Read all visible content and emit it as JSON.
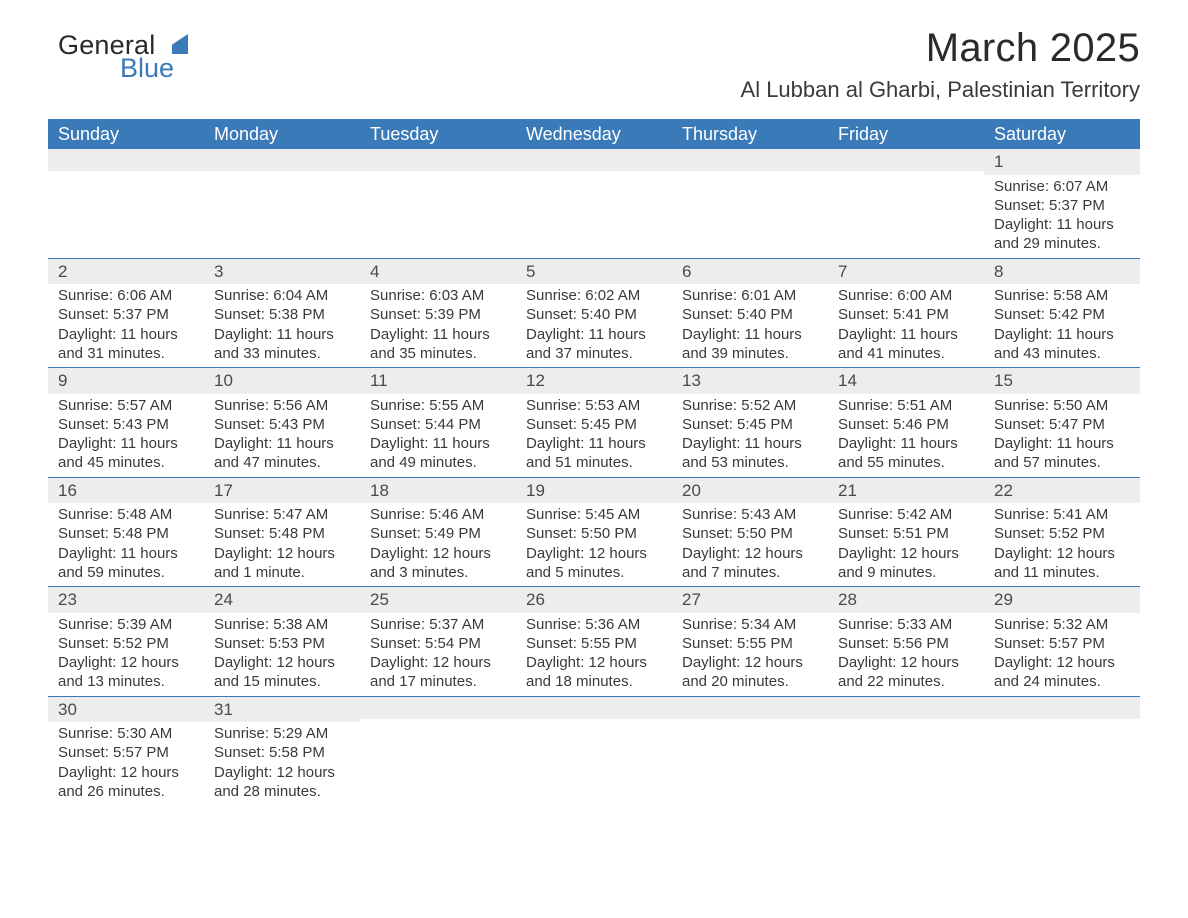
{
  "logo": {
    "text1": "General",
    "text2": "Blue",
    "triangle_color": "#3a7ab8"
  },
  "title": "March 2025",
  "location": "Al Lubban al Gharbi, Palestinian Territory",
  "colors": {
    "header_bg": "#3a7ab8",
    "header_text": "#ffffff",
    "row_border": "#3a7ab8",
    "daynum_bg": "#ededed",
    "text": "#3a3a3a",
    "background": "#ffffff"
  },
  "day_headers": [
    "Sunday",
    "Monday",
    "Tuesday",
    "Wednesday",
    "Thursday",
    "Friday",
    "Saturday"
  ],
  "weeks": [
    [
      {
        "n": "",
        "sunrise": "",
        "sunset": "",
        "daylight1": "",
        "daylight2": ""
      },
      {
        "n": "",
        "sunrise": "",
        "sunset": "",
        "daylight1": "",
        "daylight2": ""
      },
      {
        "n": "",
        "sunrise": "",
        "sunset": "",
        "daylight1": "",
        "daylight2": ""
      },
      {
        "n": "",
        "sunrise": "",
        "sunset": "",
        "daylight1": "",
        "daylight2": ""
      },
      {
        "n": "",
        "sunrise": "",
        "sunset": "",
        "daylight1": "",
        "daylight2": ""
      },
      {
        "n": "",
        "sunrise": "",
        "sunset": "",
        "daylight1": "",
        "daylight2": ""
      },
      {
        "n": "1",
        "sunrise": "Sunrise: 6:07 AM",
        "sunset": "Sunset: 5:37 PM",
        "daylight1": "Daylight: 11 hours",
        "daylight2": "and 29 minutes."
      }
    ],
    [
      {
        "n": "2",
        "sunrise": "Sunrise: 6:06 AM",
        "sunset": "Sunset: 5:37 PM",
        "daylight1": "Daylight: 11 hours",
        "daylight2": "and 31 minutes."
      },
      {
        "n": "3",
        "sunrise": "Sunrise: 6:04 AM",
        "sunset": "Sunset: 5:38 PM",
        "daylight1": "Daylight: 11 hours",
        "daylight2": "and 33 minutes."
      },
      {
        "n": "4",
        "sunrise": "Sunrise: 6:03 AM",
        "sunset": "Sunset: 5:39 PM",
        "daylight1": "Daylight: 11 hours",
        "daylight2": "and 35 minutes."
      },
      {
        "n": "5",
        "sunrise": "Sunrise: 6:02 AM",
        "sunset": "Sunset: 5:40 PM",
        "daylight1": "Daylight: 11 hours",
        "daylight2": "and 37 minutes."
      },
      {
        "n": "6",
        "sunrise": "Sunrise: 6:01 AM",
        "sunset": "Sunset: 5:40 PM",
        "daylight1": "Daylight: 11 hours",
        "daylight2": "and 39 minutes."
      },
      {
        "n": "7",
        "sunrise": "Sunrise: 6:00 AM",
        "sunset": "Sunset: 5:41 PM",
        "daylight1": "Daylight: 11 hours",
        "daylight2": "and 41 minutes."
      },
      {
        "n": "8",
        "sunrise": "Sunrise: 5:58 AM",
        "sunset": "Sunset: 5:42 PM",
        "daylight1": "Daylight: 11 hours",
        "daylight2": "and 43 minutes."
      }
    ],
    [
      {
        "n": "9",
        "sunrise": "Sunrise: 5:57 AM",
        "sunset": "Sunset: 5:43 PM",
        "daylight1": "Daylight: 11 hours",
        "daylight2": "and 45 minutes."
      },
      {
        "n": "10",
        "sunrise": "Sunrise: 5:56 AM",
        "sunset": "Sunset: 5:43 PM",
        "daylight1": "Daylight: 11 hours",
        "daylight2": "and 47 minutes."
      },
      {
        "n": "11",
        "sunrise": "Sunrise: 5:55 AM",
        "sunset": "Sunset: 5:44 PM",
        "daylight1": "Daylight: 11 hours",
        "daylight2": "and 49 minutes."
      },
      {
        "n": "12",
        "sunrise": "Sunrise: 5:53 AM",
        "sunset": "Sunset: 5:45 PM",
        "daylight1": "Daylight: 11 hours",
        "daylight2": "and 51 minutes."
      },
      {
        "n": "13",
        "sunrise": "Sunrise: 5:52 AM",
        "sunset": "Sunset: 5:45 PM",
        "daylight1": "Daylight: 11 hours",
        "daylight2": "and 53 minutes."
      },
      {
        "n": "14",
        "sunrise": "Sunrise: 5:51 AM",
        "sunset": "Sunset: 5:46 PM",
        "daylight1": "Daylight: 11 hours",
        "daylight2": "and 55 minutes."
      },
      {
        "n": "15",
        "sunrise": "Sunrise: 5:50 AM",
        "sunset": "Sunset: 5:47 PM",
        "daylight1": "Daylight: 11 hours",
        "daylight2": "and 57 minutes."
      }
    ],
    [
      {
        "n": "16",
        "sunrise": "Sunrise: 5:48 AM",
        "sunset": "Sunset: 5:48 PM",
        "daylight1": "Daylight: 11 hours",
        "daylight2": "and 59 minutes."
      },
      {
        "n": "17",
        "sunrise": "Sunrise: 5:47 AM",
        "sunset": "Sunset: 5:48 PM",
        "daylight1": "Daylight: 12 hours",
        "daylight2": "and 1 minute."
      },
      {
        "n": "18",
        "sunrise": "Sunrise: 5:46 AM",
        "sunset": "Sunset: 5:49 PM",
        "daylight1": "Daylight: 12 hours",
        "daylight2": "and 3 minutes."
      },
      {
        "n": "19",
        "sunrise": "Sunrise: 5:45 AM",
        "sunset": "Sunset: 5:50 PM",
        "daylight1": "Daylight: 12 hours",
        "daylight2": "and 5 minutes."
      },
      {
        "n": "20",
        "sunrise": "Sunrise: 5:43 AM",
        "sunset": "Sunset: 5:50 PM",
        "daylight1": "Daylight: 12 hours",
        "daylight2": "and 7 minutes."
      },
      {
        "n": "21",
        "sunrise": "Sunrise: 5:42 AM",
        "sunset": "Sunset: 5:51 PM",
        "daylight1": "Daylight: 12 hours",
        "daylight2": "and 9 minutes."
      },
      {
        "n": "22",
        "sunrise": "Sunrise: 5:41 AM",
        "sunset": "Sunset: 5:52 PM",
        "daylight1": "Daylight: 12 hours",
        "daylight2": "and 11 minutes."
      }
    ],
    [
      {
        "n": "23",
        "sunrise": "Sunrise: 5:39 AM",
        "sunset": "Sunset: 5:52 PM",
        "daylight1": "Daylight: 12 hours",
        "daylight2": "and 13 minutes."
      },
      {
        "n": "24",
        "sunrise": "Sunrise: 5:38 AM",
        "sunset": "Sunset: 5:53 PM",
        "daylight1": "Daylight: 12 hours",
        "daylight2": "and 15 minutes."
      },
      {
        "n": "25",
        "sunrise": "Sunrise: 5:37 AM",
        "sunset": "Sunset: 5:54 PM",
        "daylight1": "Daylight: 12 hours",
        "daylight2": "and 17 minutes."
      },
      {
        "n": "26",
        "sunrise": "Sunrise: 5:36 AM",
        "sunset": "Sunset: 5:55 PM",
        "daylight1": "Daylight: 12 hours",
        "daylight2": "and 18 minutes."
      },
      {
        "n": "27",
        "sunrise": "Sunrise: 5:34 AM",
        "sunset": "Sunset: 5:55 PM",
        "daylight1": "Daylight: 12 hours",
        "daylight2": "and 20 minutes."
      },
      {
        "n": "28",
        "sunrise": "Sunrise: 5:33 AM",
        "sunset": "Sunset: 5:56 PM",
        "daylight1": "Daylight: 12 hours",
        "daylight2": "and 22 minutes."
      },
      {
        "n": "29",
        "sunrise": "Sunrise: 5:32 AM",
        "sunset": "Sunset: 5:57 PM",
        "daylight1": "Daylight: 12 hours",
        "daylight2": "and 24 minutes."
      }
    ],
    [
      {
        "n": "30",
        "sunrise": "Sunrise: 5:30 AM",
        "sunset": "Sunset: 5:57 PM",
        "daylight1": "Daylight: 12 hours",
        "daylight2": "and 26 minutes."
      },
      {
        "n": "31",
        "sunrise": "Sunrise: 5:29 AM",
        "sunset": "Sunset: 5:58 PM",
        "daylight1": "Daylight: 12 hours",
        "daylight2": "and 28 minutes."
      },
      {
        "n": "",
        "sunrise": "",
        "sunset": "",
        "daylight1": "",
        "daylight2": ""
      },
      {
        "n": "",
        "sunrise": "",
        "sunset": "",
        "daylight1": "",
        "daylight2": ""
      },
      {
        "n": "",
        "sunrise": "",
        "sunset": "",
        "daylight1": "",
        "daylight2": ""
      },
      {
        "n": "",
        "sunrise": "",
        "sunset": "",
        "daylight1": "",
        "daylight2": ""
      },
      {
        "n": "",
        "sunrise": "",
        "sunset": "",
        "daylight1": "",
        "daylight2": ""
      }
    ]
  ]
}
